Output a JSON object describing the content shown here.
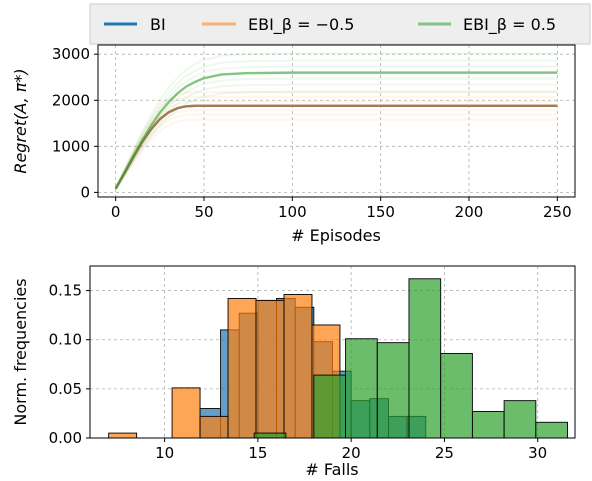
{
  "colors": {
    "BI": "#1f77b4",
    "EBI_neg": "#ff7f0e",
    "EBI_pos": "#2ca02c"
  },
  "legend": {
    "placement": "top-full-width",
    "items": [
      {
        "label": "BI",
        "color": "#1f77b4"
      },
      {
        "label": "EBI_β = −0.5",
        "color": "#ff7f0e"
      },
      {
        "label": "EBI_β = 0.5",
        "color": "#2ca02c"
      }
    ]
  },
  "chart_data": [
    {
      "type": "line",
      "xlabel": "# Episodes",
      "ylabel": "Regret(A, π*)",
      "xlim": [
        -10,
        260
      ],
      "ylim": [
        -100,
        3200
      ],
      "xticks": [
        0,
        50,
        100,
        150,
        200,
        250
      ],
      "yticks": [
        0,
        1000,
        2000,
        3000
      ],
      "grid": true,
      "series": [
        {
          "name": "BI",
          "color": "#1f77b4",
          "x": [
            0,
            5,
            10,
            15,
            20,
            25,
            30,
            35,
            40,
            45,
            50,
            60,
            75,
            100,
            150,
            200,
            250
          ],
          "values": [
            80,
            420,
            760,
            1090,
            1370,
            1590,
            1740,
            1830,
            1870,
            1880,
            1880,
            1880,
            1880,
            1880,
            1880,
            1880,
            1880
          ]
        },
        {
          "name": "EBI_β = −0.5",
          "color": "#ff7f0e",
          "x": [
            0,
            5,
            10,
            15,
            20,
            25,
            30,
            35,
            40,
            45,
            50,
            60,
            75,
            100,
            150,
            200,
            250
          ],
          "values": [
            80,
            420,
            760,
            1090,
            1370,
            1590,
            1740,
            1830,
            1870,
            1880,
            1880,
            1880,
            1880,
            1880,
            1880,
            1880,
            1880
          ]
        },
        {
          "name": "EBI_β = 0.5",
          "color": "#2ca02c",
          "x": [
            0,
            5,
            10,
            15,
            20,
            25,
            30,
            35,
            40,
            45,
            50,
            60,
            75,
            100,
            150,
            200,
            250
          ],
          "values": [
            80,
            430,
            790,
            1130,
            1450,
            1730,
            1960,
            2150,
            2300,
            2400,
            2480,
            2560,
            2590,
            2600,
            2600,
            2600,
            2600
          ]
        }
      ]
    },
    {
      "type": "bar",
      "subtype": "histogram",
      "xlabel": "# Falls",
      "ylabel": "Norm. frequencies",
      "xlim": [
        6,
        32
      ],
      "ylim": [
        0,
        0.175
      ],
      "xticks": [
        10,
        15,
        20,
        25,
        30
      ],
      "yticks": [
        0.0,
        0.05,
        0.1,
        0.15
      ],
      "grid": true,
      "series": [
        {
          "name": "BI",
          "color": "#1f77b4",
          "bins": [
            {
              "x0": 11.9,
              "x1": 13.0,
              "value": 0.03
            },
            {
              "x0": 13.0,
              "x1": 14.0,
              "value": 0.11
            },
            {
              "x0": 14.0,
              "x1": 15.0,
              "value": 0.127
            },
            {
              "x0": 15.0,
              "x1": 16.0,
              "value": 0.14
            },
            {
              "x0": 16.0,
              "x1": 17.0,
              "value": 0.142
            },
            {
              "x0": 17.0,
              "x1": 18.0,
              "value": 0.133
            },
            {
              "x0": 18.0,
              "x1": 19.0,
              "value": 0.098
            },
            {
              "x0": 19.0,
              "x1": 20.0,
              "value": 0.068
            },
            {
              "x0": 20.0,
              "x1": 21.0,
              "value": 0.038
            },
            {
              "x0": 21.0,
              "x1": 22.0,
              "value": 0.04
            },
            {
              "x0": 22.0,
              "x1": 23.0,
              "value": 0.022
            },
            {
              "x0": 23.0,
              "x1": 24.0,
              "value": 0.022
            }
          ]
        },
        {
          "name": "EBI_β = −0.5",
          "color": "#ff7f0e",
          "bins": [
            {
              "x0": 7.0,
              "x1": 8.5,
              "value": 0.005
            },
            {
              "x0": 10.4,
              "x1": 11.9,
              "value": 0.051
            },
            {
              "x0": 11.9,
              "x1": 13.4,
              "value": 0.022
            },
            {
              "x0": 13.4,
              "x1": 14.9,
              "value": 0.142
            },
            {
              "x0": 14.9,
              "x1": 16.4,
              "value": 0.14
            },
            {
              "x0": 16.4,
              "x1": 17.9,
              "value": 0.146
            },
            {
              "x0": 17.9,
              "x1": 19.4,
              "value": 0.115
            }
          ]
        },
        {
          "name": "EBI_β = 0.5",
          "color": "#2ca02c",
          "bins": [
            {
              "x0": 14.8,
              "x1": 16.5,
              "value": 0.005
            },
            {
              "x0": 18.0,
              "x1": 19.7,
              "value": 0.064
            },
            {
              "x0": 19.7,
              "x1": 21.4,
              "value": 0.101
            },
            {
              "x0": 21.4,
              "x1": 23.1,
              "value": 0.097
            },
            {
              "x0": 23.1,
              "x1": 24.8,
              "value": 0.162
            },
            {
              "x0": 24.8,
              "x1": 26.5,
              "value": 0.086
            },
            {
              "x0": 26.5,
              "x1": 28.2,
              "value": 0.027
            },
            {
              "x0": 28.2,
              "x1": 29.9,
              "value": 0.038
            },
            {
              "x0": 29.9,
              "x1": 31.6,
              "value": 0.016
            }
          ]
        }
      ]
    }
  ]
}
